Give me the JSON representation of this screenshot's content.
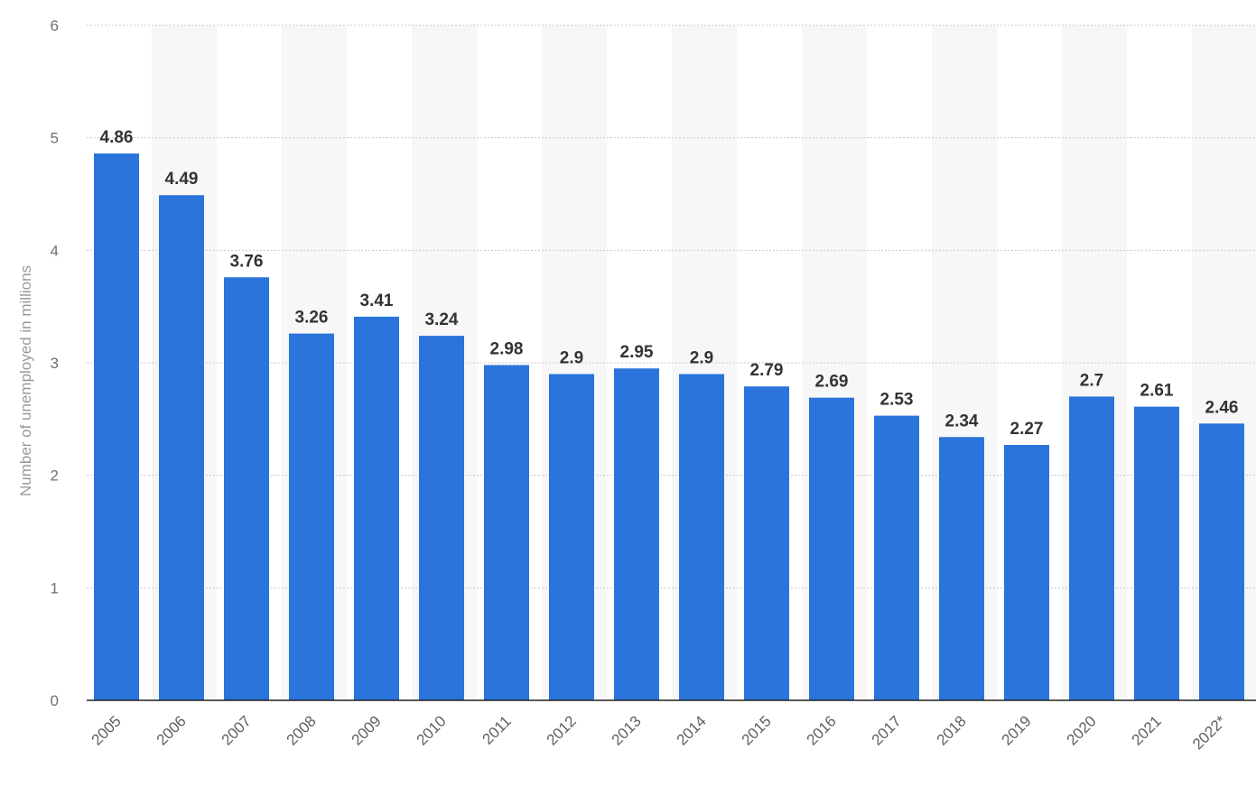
{
  "chart_data": {
    "type": "bar",
    "categories": [
      "2005",
      "2006",
      "2007",
      "2008",
      "2009",
      "2010",
      "2011",
      "2012",
      "2013",
      "2014",
      "2015",
      "2016",
      "2017",
      "2018",
      "2019",
      "2020",
      "2021",
      "2022*"
    ],
    "values": [
      4.86,
      4.49,
      3.76,
      3.26,
      3.41,
      3.24,
      2.98,
      2.9,
      2.95,
      2.9,
      2.79,
      2.69,
      2.53,
      2.34,
      2.27,
      2.7,
      2.61,
      2.46
    ],
    "value_labels": [
      "4.86",
      "4.49",
      "3.76",
      "3.26",
      "3.41",
      "3.24",
      "2.98",
      "2.9",
      "2.95",
      "2.9",
      "2.79",
      "2.69",
      "2.53",
      "2.34",
      "2.27",
      "2.7",
      "2.61",
      "2.46"
    ],
    "title": "",
    "xlabel": "",
    "ylabel": "Number of unemployed in millions",
    "ylim": [
      0,
      6
    ],
    "yticks": [
      "0",
      "1",
      "2",
      "3",
      "4",
      "5",
      "6"
    ],
    "grid": true,
    "bar_color": "#2a74db",
    "band_color": "#f7f7f7",
    "grid_color": "#c8c8c8",
    "axis_color": "#222222"
  }
}
